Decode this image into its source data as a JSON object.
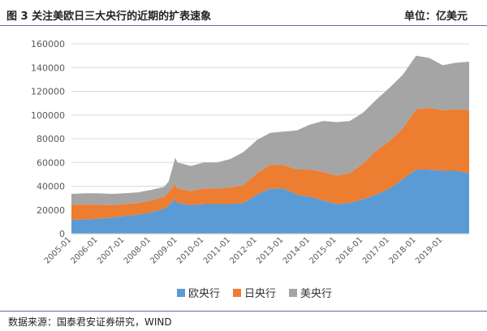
{
  "header": {
    "title": "图 3 关注美欧日三大央行的近期的扩表速象",
    "unit": "单位：亿美元"
  },
  "footer": {
    "source": "数据来源：国泰君安证券研究，WIND"
  },
  "chart_data": {
    "type": "area",
    "stacked": true,
    "title": "",
    "xlabel": "",
    "ylabel": "",
    "ylim": [
      0,
      160000
    ],
    "xlim": [
      "2005-01",
      "2020-01"
    ],
    "y_ticks": [
      0,
      20000,
      40000,
      60000,
      80000,
      100000,
      120000,
      140000,
      160000
    ],
    "y_tick_labels": [
      "0",
      "20000",
      "40000",
      "60000",
      "80000",
      "100000",
      "120000",
      "140000",
      "160000"
    ],
    "x_tick_labels": [
      "2005-01",
      "2006-01",
      "2007-01",
      "2008-01",
      "2009-01",
      "2010-01",
      "2011-01",
      "2012-01",
      "2013-01",
      "2014-01",
      "2015-01",
      "2016-01",
      "2017-01",
      "2018-01",
      "2019-01"
    ],
    "grid": "horizontal",
    "legend_position": "bottom",
    "x": [
      "2005-01",
      "2005-07",
      "2006-01",
      "2006-07",
      "2007-01",
      "2007-07",
      "2008-01",
      "2008-07",
      "2008-09",
      "2008-12",
      "2009-01",
      "2009-07",
      "2010-01",
      "2010-07",
      "2011-01",
      "2011-07",
      "2012-01",
      "2012-07",
      "2013-01",
      "2013-07",
      "2014-01",
      "2014-07",
      "2015-01",
      "2015-07",
      "2016-01",
      "2016-07",
      "2017-01",
      "2017-07",
      "2018-01",
      "2018-07",
      "2019-01",
      "2019-07",
      "2020-01"
    ],
    "series": [
      {
        "name": "欧央行",
        "color": "#5b9bd5",
        "values": [
          11500,
          12000,
          12500,
          13500,
          15000,
          16000,
          18000,
          21000,
          24000,
          29000,
          26000,
          24000,
          25000,
          25000,
          25000,
          26000,
          33000,
          38000,
          38000,
          33000,
          31000,
          28000,
          25000,
          26000,
          29000,
          33000,
          38000,
          46000,
          54000,
          54000,
          53000,
          53000,
          51000
        ]
      },
      {
        "name": "日央行",
        "color": "#ed7d31",
        "values": [
          13000,
          12500,
          12000,
          10500,
          10000,
          9800,
          9800,
          10000,
          11000,
          13000,
          12000,
          12000,
          13000,
          13000,
          14000,
          15000,
          18000,
          20000,
          20000,
          21000,
          23000,
          24000,
          24000,
          25000,
          30000,
          37000,
          40000,
          43000,
          51000,
          52000,
          51000,
          52000,
          53000
        ]
      },
      {
        "name": "美央行",
        "color": "#a5a5a5",
        "values": [
          9000,
          9500,
          9500,
          9500,
          9000,
          9000,
          9000,
          8500,
          9000,
          22000,
          22000,
          21000,
          22000,
          22000,
          24000,
          28000,
          28000,
          27000,
          28000,
          33000,
          38000,
          43000,
          45000,
          44000,
          43000,
          43000,
          45000,
          45000,
          45000,
          42000,
          38000,
          39000,
          41000
        ]
      }
    ]
  }
}
